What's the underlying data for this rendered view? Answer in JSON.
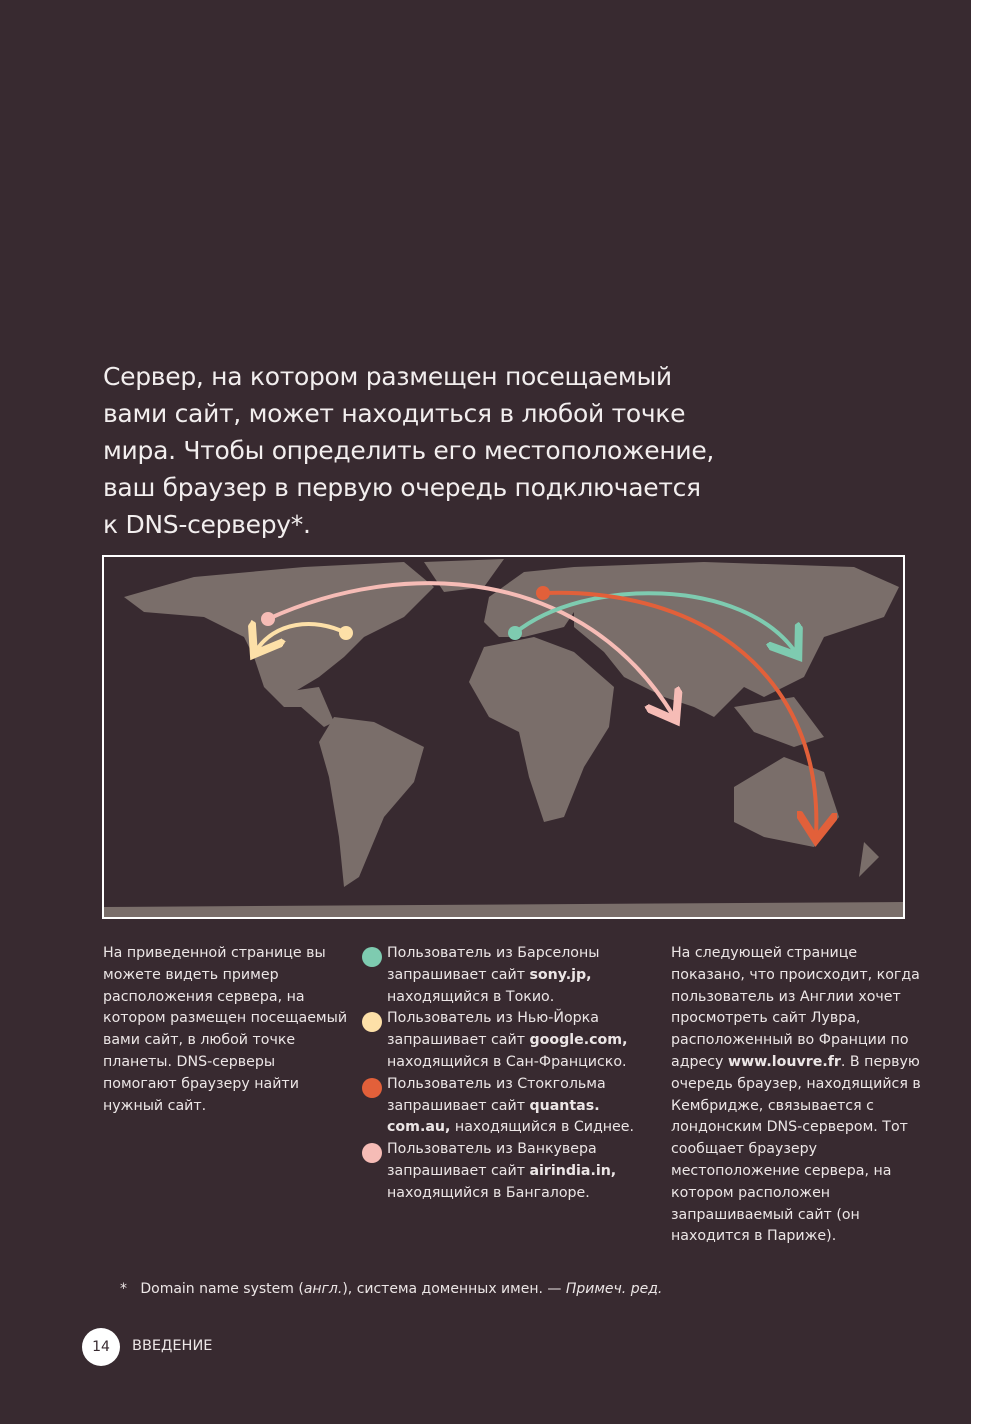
{
  "lead_text": "Сервер, на котором размещен посещаемый вами сайт, может находиться в любой точке мира. Чтобы определить его местоположение, ваш браузер в первую очередь подключается к DNS-серверу*.",
  "map": {
    "land_color": "#7a6e6a",
    "routes": [
      {
        "from": "Барселона",
        "to": "Токио",
        "color": "#7ecbb0"
      },
      {
        "from": "Нью-Йорк",
        "to": "Сан-Франциско",
        "color": "#fde0a8"
      },
      {
        "from": "Стокгольм",
        "to": "Сидней",
        "color": "#e2603a"
      },
      {
        "from": "Ванкувер",
        "to": "Бангалор",
        "color": "#f6bcb6"
      }
    ]
  },
  "left_column": "На приведенной странице вы можете видеть пример расположения сервера, на котором размещен посещаемый вами сайт, в любой точке планеты. DNS-серверы помогают браузеру найти нужный сайт.",
  "legend": [
    {
      "color": "#7ecbb0",
      "prefix": "Пользователь из Барселоны запрашивает сайт ",
      "site": "sony.jp,",
      "suffix": " находящийся в Токио."
    },
    {
      "color": "#fde0a8",
      "prefix": "Пользователь из Нью-Йорка запрашивает сайт ",
      "site": "google.com,",
      "suffix": " находящийся в Сан-Франциско."
    },
    {
      "color": "#e2603a",
      "prefix": "Пользователь из Стокгольма запрашивает сайт ",
      "site": "quantas. com.au,",
      "suffix": " находящийся в Сиднее."
    },
    {
      "color": "#f6bcb6",
      "prefix": "Пользователь из Ванкувера запрашивает сайт ",
      "site": "airindia.in,",
      "suffix": " находящийся в Бангалоре."
    }
  ],
  "right_column": {
    "part1": "На следующей странице показано, что происходит, когда пользователь из Англии хочет просмотреть сайт Лувра, расположенный во Франции по адресу ",
    "site": "www.louvre.fr",
    "part2": ". В первую очередь браузер, находящийся в Кембридже, связывается с лондонским DNS-сервером. Тот сообщает браузеру местоположение сервера, на котором расположен запрашиваемый сайт (он находится в Париже)."
  },
  "footnote": {
    "mark": "*",
    "text1": "Domain name system (",
    "italic1": "англ.",
    "text2": "), система доменных имен. — ",
    "italic2": "Примеч. ред."
  },
  "page_number": "14",
  "section": "ВВЕДЕНИЕ"
}
